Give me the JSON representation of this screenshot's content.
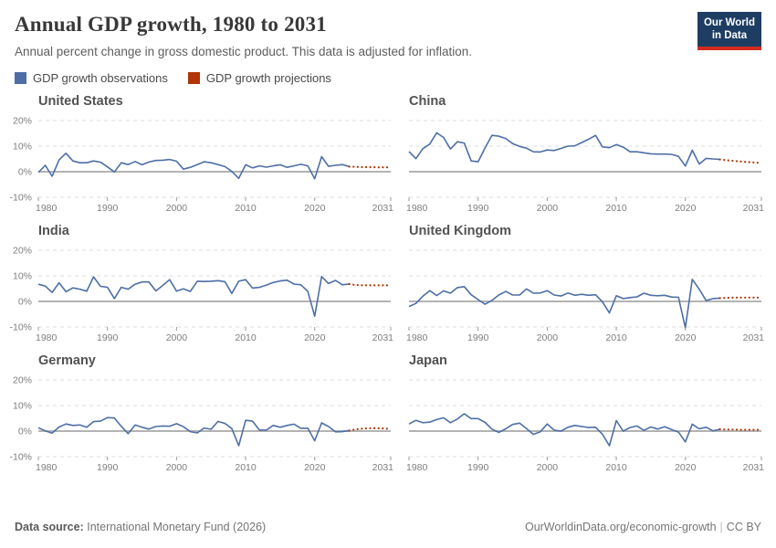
{
  "page": {
    "title": "Annual GDP growth, 1980 to 2031",
    "subtitle": "Annual percent change in gross domestic product. This data is adjusted for inflation.",
    "logo": {
      "line1": "Our World",
      "line2": "in Data",
      "bg_color": "#1d3d63",
      "bar_color": "#d42b21"
    },
    "footer": {
      "source_label": "Data source:",
      "source_value": "International Monetary Fund (2026)",
      "link": "OurWorldinData.org/economic-growth",
      "separator": "|",
      "license": "CC BY"
    }
  },
  "legend": [
    {
      "label": "GDP growth observations",
      "color": "#4e6fa6"
    },
    {
      "label": "GDP growth projections",
      "color": "#b13507"
    }
  ],
  "axis": {
    "unit": "%",
    "ylim": [
      -10,
      20
    ],
    "xlim": [
      1980,
      2031
    ],
    "grid": true,
    "y_ticks": [
      {
        "value": 20,
        "label": "20%"
      },
      {
        "value": 10,
        "label": "10%"
      },
      {
        "value": 0,
        "label": "0%"
      },
      {
        "value": -10,
        "label": "-10%"
      }
    ],
    "x_ticks": [
      {
        "value": 1980,
        "label": "1980"
      },
      {
        "value": 1990,
        "label": "1990"
      },
      {
        "value": 2000,
        "label": "2000"
      },
      {
        "value": 2010,
        "label": "2010"
      },
      {
        "value": 2020,
        "label": "2020"
      },
      {
        "value": 2031,
        "label": "2031"
      }
    ]
  },
  "chart_data": [
    {
      "type": "line",
      "title": "United States",
      "observations": {
        "start_year": 1980,
        "values": [
          -0.3,
          2.5,
          -1.8,
          4.6,
          7.2,
          4.2,
          3.5,
          3.5,
          4.2,
          3.7,
          1.9,
          -0.1,
          3.5,
          2.8,
          4.0,
          2.7,
          3.8,
          4.4,
          4.5,
          4.8,
          4.1,
          1.0,
          1.7,
          2.8,
          3.9,
          3.5,
          2.8,
          2.0,
          0.1,
          -2.6,
          2.7,
          1.5,
          2.3,
          1.8,
          2.3,
          2.7,
          1.7,
          2.3,
          2.9,
          2.3,
          -2.8,
          5.9,
          2.1,
          2.5,
          2.8,
          2.0
        ]
      },
      "projections": {
        "start_year": 2025,
        "values": [
          2.0,
          1.9,
          1.8,
          1.8,
          1.7,
          1.7,
          1.7
        ]
      }
    },
    {
      "type": "line",
      "title": "China",
      "observations": {
        "start_year": 1980,
        "values": [
          7.9,
          5.1,
          9.0,
          10.8,
          15.2,
          13.4,
          8.9,
          11.7,
          11.2,
          4.2,
          3.9,
          9.3,
          14.2,
          13.9,
          13.0,
          11.0,
          9.9,
          9.2,
          7.8,
          7.7,
          8.5,
          8.3,
          9.1,
          10.0,
          10.1,
          11.4,
          12.7,
          14.2,
          9.7,
          9.4,
          10.6,
          9.6,
          7.8,
          7.8,
          7.4,
          7.0,
          6.9,
          6.9,
          6.8,
          6.0,
          2.2,
          8.4,
          3.0,
          5.2,
          5.0,
          4.8
        ]
      },
      "projections": {
        "start_year": 2025,
        "values": [
          4.8,
          4.5,
          4.2,
          4.0,
          3.8,
          3.6,
          3.4
        ]
      }
    },
    {
      "type": "line",
      "title": "India",
      "observations": {
        "start_year": 1980,
        "values": [
          6.7,
          6.0,
          3.5,
          7.3,
          3.8,
          5.3,
          4.8,
          4.0,
          9.6,
          5.9,
          5.5,
          1.1,
          5.5,
          4.8,
          6.7,
          7.6,
          7.6,
          4.1,
          6.2,
          8.5,
          4.0,
          4.9,
          3.9,
          7.9,
          7.8,
          7.9,
          8.1,
          7.7,
          3.1,
          7.9,
          8.5,
          5.2,
          5.5,
          6.4,
          7.4,
          8.0,
          8.3,
          6.8,
          6.5,
          3.9,
          -5.8,
          9.7,
          7.0,
          8.2,
          6.5,
          6.8
        ]
      },
      "projections": {
        "start_year": 2025,
        "values": [
          6.8,
          6.4,
          6.3,
          6.3,
          6.3,
          6.3,
          6.3
        ]
      }
    },
    {
      "type": "line",
      "title": "United Kingdom",
      "observations": {
        "start_year": 1980,
        "values": [
          -2.0,
          -0.8,
          2.0,
          4.2,
          2.3,
          4.1,
          3.2,
          5.4,
          5.8,
          2.6,
          0.7,
          -1.1,
          0.4,
          2.5,
          3.9,
          2.5,
          2.5,
          4.9,
          3.2,
          3.3,
          4.2,
          2.5,
          2.1,
          3.3,
          2.4,
          2.8,
          2.4,
          2.6,
          -0.2,
          -4.5,
          2.2,
          1.1,
          1.5,
          1.8,
          3.2,
          2.4,
          2.2,
          2.4,
          1.7,
          1.6,
          -10.3,
          8.6,
          4.8,
          0.3,
          1.1,
          1.3
        ]
      },
      "projections": {
        "start_year": 2025,
        "values": [
          1.3,
          1.4,
          1.5,
          1.5,
          1.5,
          1.5,
          1.5
        ]
      }
    },
    {
      "type": "line",
      "title": "Germany",
      "observations": {
        "start_year": 1980,
        "values": [
          1.3,
          0.1,
          -0.8,
          1.6,
          2.8,
          2.2,
          2.4,
          1.5,
          3.7,
          3.9,
          5.3,
          5.1,
          1.9,
          -1.0,
          2.4,
          1.5,
          0.8,
          1.8,
          2.0,
          1.9,
          2.9,
          1.7,
          -0.2,
          -0.7,
          1.2,
          0.7,
          3.8,
          3.0,
          1.0,
          -5.7,
          4.2,
          3.9,
          0.4,
          0.4,
          2.2,
          1.5,
          2.2,
          2.7,
          1.1,
          1.1,
          -3.8,
          3.2,
          1.8,
          -0.3,
          -0.2,
          0.2
        ]
      },
      "projections": {
        "start_year": 2025,
        "values": [
          0.2,
          0.7,
          1.0,
          1.1,
          1.1,
          1.0,
          0.9
        ]
      }
    },
    {
      "type": "line",
      "title": "Japan",
      "observations": {
        "start_year": 1980,
        "values": [
          2.8,
          4.2,
          3.3,
          3.5,
          4.5,
          5.2,
          3.3,
          4.7,
          6.8,
          4.9,
          4.9,
          3.4,
          0.8,
          -0.5,
          0.9,
          2.6,
          3.1,
          1.0,
          -1.3,
          -0.3,
          2.8,
          0.4,
          0.0,
          1.5,
          2.2,
          1.8,
          1.4,
          1.5,
          -1.2,
          -5.7,
          4.1,
          0.0,
          1.4,
          2.0,
          0.3,
          1.6,
          0.8,
          1.7,
          0.6,
          -0.4,
          -4.2,
          2.7,
          0.9,
          1.5,
          0.1,
          0.7
        ]
      },
      "projections": {
        "start_year": 2025,
        "values": [
          0.7,
          0.6,
          0.6,
          0.5,
          0.5,
          0.5,
          0.5
        ]
      }
    }
  ]
}
